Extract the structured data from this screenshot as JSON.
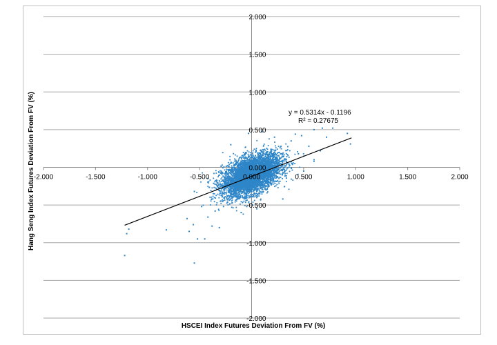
{
  "chart_data": {
    "type": "scatter",
    "title": "",
    "xlabel": "HSCEI Index Futures Deviation From FV (%)",
    "ylabel": "Hang Seng Index Futures Deviation From FV (%)",
    "xlim": [
      -2.0,
      2.0
    ],
    "ylim": [
      -2.0,
      2.0
    ],
    "x_ticks": [
      "-2.000",
      "-1.500",
      "-1.000",
      "-0.500",
      "0.000",
      "0.500",
      "1.000",
      "1.500",
      "2.000"
    ],
    "y_ticks": [
      "2.000",
      "1.500",
      "1.000",
      "0.500",
      "0.000",
      "-0.500",
      "-1.000",
      "-1.500",
      "-2.000"
    ],
    "grid": true,
    "legend": "none",
    "marker_color": "#2e86c8",
    "trendline": {
      "slope": 0.5314,
      "intercept": -0.1196,
      "x_range": [
        -1.22,
        0.96
      ],
      "equation": "y = 0.5314x - 0.1196",
      "r_squared": "R² = 0.27675",
      "color": "#000000"
    },
    "series": [
      {
        "points": [
          [
            -1.22,
            -1.17
          ],
          [
            -1.2,
            -0.88
          ],
          [
            -1.18,
            -0.82
          ],
          [
            -0.82,
            -0.83
          ],
          [
            -0.6,
            -0.85
          ],
          [
            -0.52,
            -0.95
          ],
          [
            -0.45,
            -0.95
          ],
          [
            -0.56,
            -0.76
          ],
          [
            -0.62,
            -0.68
          ],
          [
            -0.38,
            -0.78
          ],
          [
            -0.31,
            -0.8
          ],
          [
            -0.55,
            -1.27
          ],
          [
            -0.48,
            -0.52
          ],
          [
            -0.42,
            -0.66
          ],
          [
            -0.35,
            -0.58
          ],
          [
            -0.55,
            -0.32
          ],
          [
            -0.3,
            -0.34
          ],
          [
            -0.27,
            -0.52
          ],
          [
            0.6,
            0.5
          ],
          [
            0.68,
            0.52
          ],
          [
            0.78,
            0.52
          ],
          [
            0.92,
            0.45
          ],
          [
            0.95,
            0.31
          ],
          [
            0.72,
            0.4
          ],
          [
            0.55,
            0.28
          ],
          [
            0.48,
            0.42
          ],
          [
            0.42,
            0.44
          ],
          [
            0.6,
            0.1
          ],
          [
            0.66,
            0.22
          ],
          [
            0.45,
            0.18
          ],
          [
            0.38,
            0.35
          ],
          [
            0.5,
            -0.05
          ],
          [
            -0.03,
            0.45
          ],
          [
            0.1,
            0.47
          ],
          [
            0.22,
            0.4
          ],
          [
            -0.1,
            -0.6
          ],
          [
            0.05,
            -0.55
          ],
          [
            0.3,
            -0.42
          ],
          [
            -0.2,
            0.3
          ],
          [
            -0.25,
            -0.2
          ]
        ],
        "cluster": {
          "description": "dense cloud of several thousand observations",
          "count": 5000,
          "center": [
            0.0,
            -0.1
          ],
          "spread": [
            0.14,
            0.12
          ],
          "slope": 0.5314
        }
      }
    ]
  }
}
